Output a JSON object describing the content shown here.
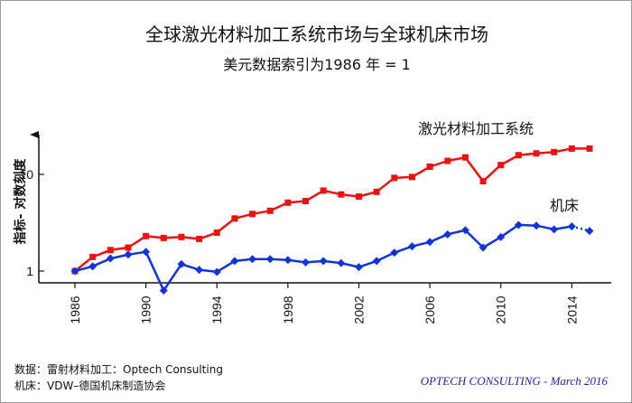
{
  "chart_data": {
    "type": "line",
    "title": "全球激光材料加工系统市场与全球机床市场",
    "subtitle": "美元数据索引为1986 年 = 1",
    "ylabel": "指标- 对数刻度",
    "y_scale": "log",
    "ylim": [
      1,
      19
    ],
    "xlim": [
      1986,
      2015
    ],
    "x_ticks": [
      "1986",
      "1990",
      "1994",
      "1998",
      "2002",
      "2006",
      "2010",
      "2014"
    ],
    "y_ticks": [
      "1",
      "10"
    ],
    "series": [
      {
        "name": "激光材料加工系统",
        "color": "#ee1111",
        "marker": "square",
        "x": [
          1986,
          1987,
          1988,
          1989,
          1990,
          1991,
          1992,
          1993,
          1994,
          1995,
          1996,
          1997,
          1998,
          1999,
          2000,
          2001,
          2002,
          2003,
          2004,
          2005,
          2006,
          2007,
          2008,
          2009,
          2010,
          2011,
          2012,
          2013,
          2014,
          2015
        ],
        "y": [
          1.0,
          1.4,
          1.65,
          1.75,
          2.3,
          2.2,
          2.25,
          2.15,
          2.5,
          3.5,
          3.9,
          4.2,
          5.1,
          5.3,
          6.8,
          6.2,
          5.9,
          6.6,
          9.2,
          9.4,
          12.0,
          13.8,
          15.0,
          8.5,
          12.5,
          15.8,
          16.5,
          17.0,
          18.5,
          18.5
        ]
      },
      {
        "name": "机床",
        "color": "#1133dd",
        "marker": "diamond",
        "x": [
          1986,
          1987,
          1988,
          1989,
          1990,
          1991,
          1992,
          1993,
          1994,
          1995,
          1996,
          1997,
          1998,
          1999,
          2000,
          2001,
          2002,
          2003,
          2004,
          2005,
          2006,
          2007,
          2008,
          2009,
          2010,
          2011,
          2012,
          2013,
          2014,
          2015
        ],
        "y": [
          1.0,
          1.12,
          1.35,
          1.48,
          1.58,
          0.63,
          1.18,
          1.03,
          0.98,
          1.27,
          1.33,
          1.33,
          1.3,
          1.23,
          1.27,
          1.21,
          1.1,
          1.27,
          1.55,
          1.8,
          2.0,
          2.4,
          2.65,
          1.75,
          2.25,
          3.0,
          2.95,
          2.7,
          2.9,
          2.6
        ],
        "dotted_from_index": 28
      }
    ]
  },
  "footer": {
    "source_line_1": "数据：雷射材料加工：Optech Consulting",
    "source_line_2": "机床：VDW–德国机床制造协会",
    "credit": "OPTECH CONSULTING - March 2016"
  }
}
